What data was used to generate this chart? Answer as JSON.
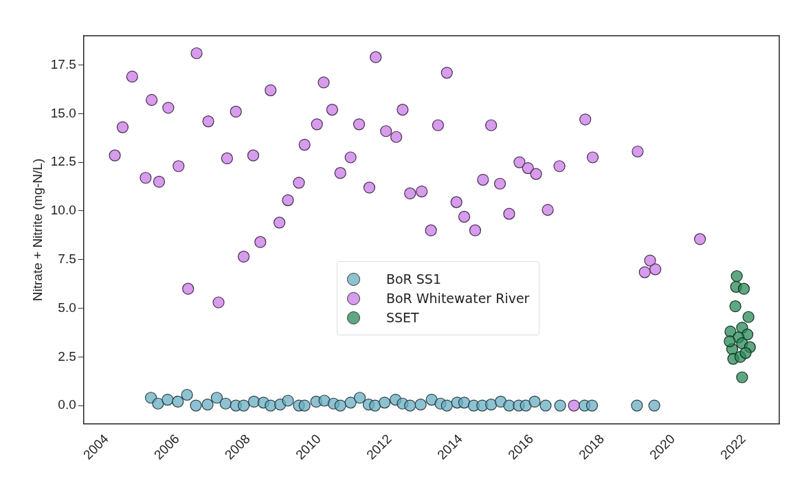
{
  "chart_data": {
    "type": "scatter",
    "ylabel": "Nitrate + Nitrite (mg-N/L)",
    "xlim": [
      2003.35,
      2023.0
    ],
    "xticks": [
      2004,
      2006,
      2008,
      2010,
      2012,
      2014,
      2016,
      2018,
      2020,
      2022
    ],
    "ylim": [
      -0.95,
      19.0
    ],
    "yticks": [
      {
        "value": 0,
        "label": "0.0"
      },
      {
        "value": 2.5,
        "label": "2.5"
      },
      {
        "value": 5,
        "label": "5.0"
      },
      {
        "value": 7.5,
        "label": "7.5"
      },
      {
        "value": 10,
        "label": "10.0"
      },
      {
        "value": 12.5,
        "label": "12.5"
      },
      {
        "value": 15,
        "label": "15.0"
      },
      {
        "value": 17.5,
        "label": "17.5"
      }
    ],
    "grid": false,
    "legend": "center",
    "marker": "circle",
    "series": [
      {
        "name": "BoR SS1",
        "color": "#6aaec2",
        "x": [
          2005.25,
          2005.45,
          2005.72,
          2006.01,
          2006.27,
          2006.52,
          2006.85,
          2007.11,
          2007.36,
          2007.65,
          2007.87,
          2008.16,
          2008.43,
          2008.63,
          2008.9,
          2009.12,
          2009.43,
          2009.59,
          2009.92,
          2010.15,
          2010.41,
          2010.6,
          2010.89,
          2011.15,
          2011.4,
          2011.58,
          2011.85,
          2012.16,
          2012.36,
          2012.57,
          2012.87,
          2013.18,
          2013.43,
          2013.61,
          2013.9,
          2014.1,
          2014.37,
          2014.61,
          2014.86,
          2015.13,
          2015.37,
          2015.64,
          2015.84,
          2016.09,
          2016.4,
          2016.81,
          2017.5,
          2017.71,
          2018.98,
          2019.47
        ],
        "values": [
          0.4,
          0.1,
          0.3,
          0.2,
          0.55,
          0.0,
          0.05,
          0.4,
          0.1,
          0.0,
          0.0,
          0.2,
          0.15,
          0.0,
          0.05,
          0.25,
          0.0,
          0.0,
          0.2,
          0.25,
          0.1,
          0.0,
          0.15,
          0.4,
          0.05,
          0.0,
          0.15,
          0.3,
          0.1,
          0.0,
          0.05,
          0.3,
          0.1,
          0.0,
          0.15,
          0.15,
          0.0,
          0.0,
          0.05,
          0.2,
          0.0,
          0.0,
          0.0,
          0.2,
          0.0,
          0.0,
          0.0,
          0.0,
          0.0,
          0.0
        ]
      },
      {
        "name": "BoR Whitewater River",
        "color": "#c97be6",
        "x": [
          2004.23,
          2004.45,
          2004.72,
          2005.1,
          2005.27,
          2005.48,
          2005.74,
          2006.03,
          2006.3,
          2006.54,
          2006.87,
          2007.16,
          2007.4,
          2007.65,
          2007.87,
          2008.14,
          2008.34,
          2008.63,
          2008.88,
          2009.12,
          2009.43,
          2009.59,
          2009.94,
          2010.13,
          2010.37,
          2010.6,
          2010.89,
          2011.13,
          2011.42,
          2011.6,
          2011.89,
          2012.18,
          2012.36,
          2012.57,
          2012.9,
          2013.16,
          2013.36,
          2013.61,
          2013.88,
          2014.1,
          2014.41,
          2014.63,
          2014.86,
          2015.11,
          2015.37,
          2015.66,
          2015.9,
          2016.13,
          2016.46,
          2016.79,
          2017.2,
          2017.52,
          2017.73,
          2019.0,
          2019.2,
          2019.35,
          2019.5,
          2020.76
        ],
        "values": [
          12.85,
          14.3,
          16.9,
          11.7,
          15.7,
          11.5,
          15.3,
          12.3,
          6.0,
          18.1,
          14.6,
          5.3,
          12.7,
          15.1,
          7.65,
          12.85,
          8.4,
          16.2,
          9.4,
          10.55,
          11.45,
          13.4,
          14.45,
          16.6,
          15.2,
          11.95,
          12.75,
          14.45,
          11.2,
          17.9,
          14.1,
          13.8,
          15.2,
          10.9,
          11.0,
          9.0,
          14.4,
          17.1,
          10.45,
          9.7,
          9.0,
          11.6,
          14.4,
          11.4,
          9.85,
          12.5,
          12.2,
          11.9,
          10.05,
          12.3,
          0.0,
          14.7,
          12.75,
          13.05,
          6.85,
          7.45,
          7.0,
          8.55
        ]
      },
      {
        "name": "SSET",
        "color": "#2a8a5a",
        "x": [
          2021.8,
          2021.78,
          2022.0,
          2021.76,
          2022.13,
          2021.62,
          2021.95,
          2022.1,
          2021.85,
          2021.95,
          2021.67,
          2022.17,
          2021.7,
          2021.9,
          2022.05,
          2021.6,
          2021.95
        ],
        "values": [
          6.65,
          6.1,
          6.0,
          5.1,
          4.55,
          3.8,
          4.0,
          3.65,
          3.5,
          3.2,
          2.9,
          3.0,
          2.4,
          2.5,
          2.7,
          3.3,
          1.45
        ]
      }
    ]
  }
}
